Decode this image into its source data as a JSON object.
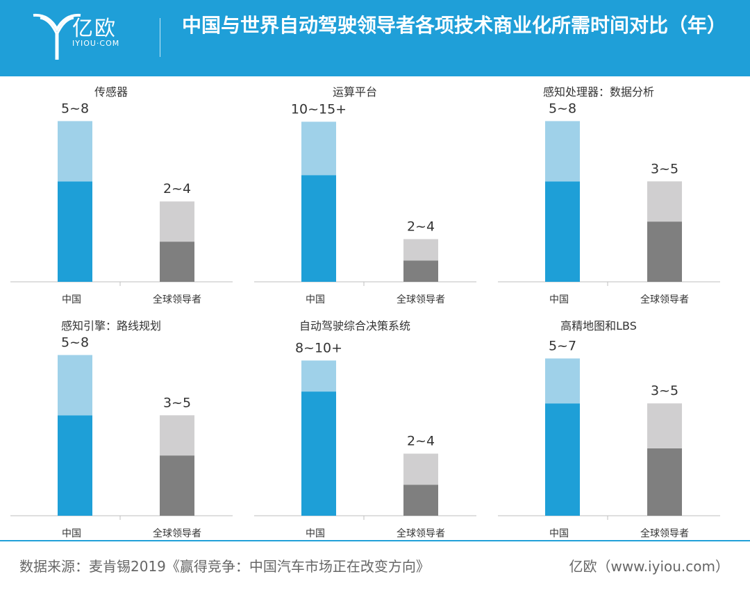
{
  "header": {
    "logo_cn": "亿欧",
    "logo_en": "IYIOU·COM",
    "title": "中国与世界自动驾驶领导者各项技术商业化所需时间对比（年）"
  },
  "colors": {
    "header_bg": "#1f9fd8",
    "china_dark": "#1e9fd7",
    "china_light": "#9fd1e9",
    "global_dark": "#7f7f7f",
    "global_light": "#d0cfd0",
    "axis": "#bfbfbf",
    "text": "#333333"
  },
  "chart_data": [
    {
      "type": "bar",
      "stacked": true,
      "title": "传感器",
      "categories": [
        "中国",
        "全球领导者"
      ],
      "series": [
        {
          "values": [
            5,
            2
          ]
        },
        {
          "values": [
            3,
            2
          ]
        }
      ],
      "labels": [
        "5~8",
        "2~4"
      ],
      "ylim": [
        0,
        8.5
      ]
    },
    {
      "type": "bar",
      "stacked": true,
      "title": "运算平台",
      "categories": [
        "中国",
        "全球领导者"
      ],
      "series": [
        {
          "values": [
            10,
            2
          ]
        },
        {
          "values": [
            5,
            2
          ]
        }
      ],
      "labels": [
        "10~15+",
        "2~4"
      ],
      "ylim": [
        0,
        16
      ]
    },
    {
      "type": "bar",
      "stacked": true,
      "title": "感知处理器：数据分析",
      "categories": [
        "中国",
        "全球领导者"
      ],
      "series": [
        {
          "values": [
            5,
            3
          ]
        },
        {
          "values": [
            3,
            2
          ]
        }
      ],
      "labels": [
        "5~8",
        "3~5"
      ],
      "ylim": [
        0,
        8.5
      ]
    },
    {
      "type": "bar",
      "stacked": true,
      "title": "感知引擎：路线规划",
      "categories": [
        "中国",
        "全球领导者"
      ],
      "series": [
        {
          "values": [
            5,
            3
          ]
        },
        {
          "values": [
            3,
            2
          ]
        }
      ],
      "labels": [
        "5~8",
        "3~5"
      ],
      "ylim": [
        0,
        8.5
      ]
    },
    {
      "type": "bar",
      "stacked": true,
      "title": "自动驾驶综合决策系统",
      "categories": [
        "中国",
        "全球领导者"
      ],
      "series": [
        {
          "values": [
            8,
            2
          ]
        },
        {
          "values": [
            2,
            2
          ]
        }
      ],
      "labels": [
        "8~10+",
        "2~4"
      ],
      "ylim": [
        0,
        11
      ]
    },
    {
      "type": "bar",
      "stacked": true,
      "title": "高精地图和LBS",
      "categories": [
        "中国",
        "全球领导者"
      ],
      "series": [
        {
          "values": [
            5,
            3
          ]
        },
        {
          "values": [
            2,
            2
          ]
        }
      ],
      "labels": [
        "5~7",
        "3~5"
      ],
      "ylim": [
        0,
        7.6
      ]
    }
  ],
  "footer": {
    "source": "数据来源：麦肯锡2019《赢得竞争：中国汽车市场正在改变方向》",
    "credit": "亿欧（www.iyiou.com）"
  }
}
